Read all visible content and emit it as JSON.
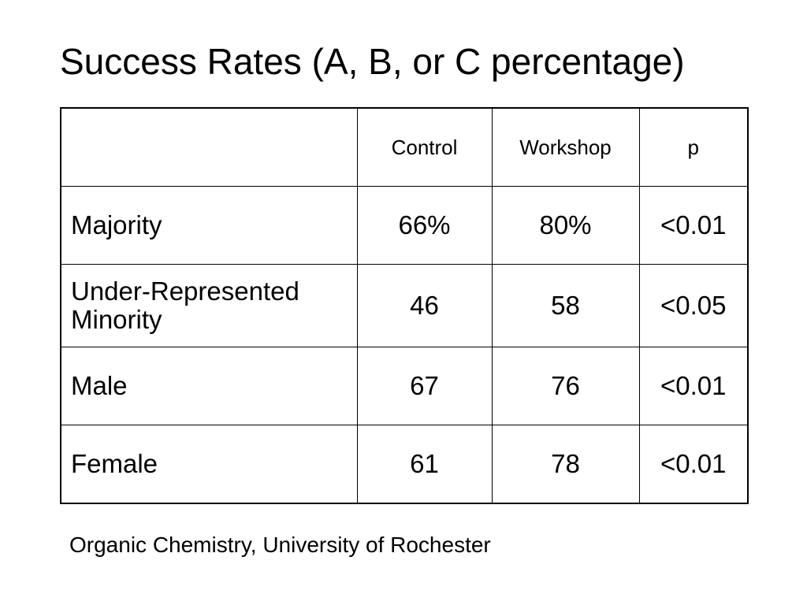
{
  "title": "Success Rates (A, B, or C percentage)",
  "table": {
    "headers": [
      "",
      "Control",
      "Workshop",
      "p"
    ],
    "rows": [
      {
        "label": "Majority",
        "control": "66%",
        "workshop": "80%",
        "p": "<0.01"
      },
      {
        "label": "Under-Represented Minority",
        "control": "46",
        "workshop": "58",
        "p": "<0.05"
      },
      {
        "label": "Male",
        "control": "67",
        "workshop": "76",
        "p": "<0.01"
      },
      {
        "label": "Female",
        "control": "61",
        "workshop": "78",
        "p": "<0.01"
      }
    ]
  },
  "caption": "Organic Chemistry, University of Rochester"
}
